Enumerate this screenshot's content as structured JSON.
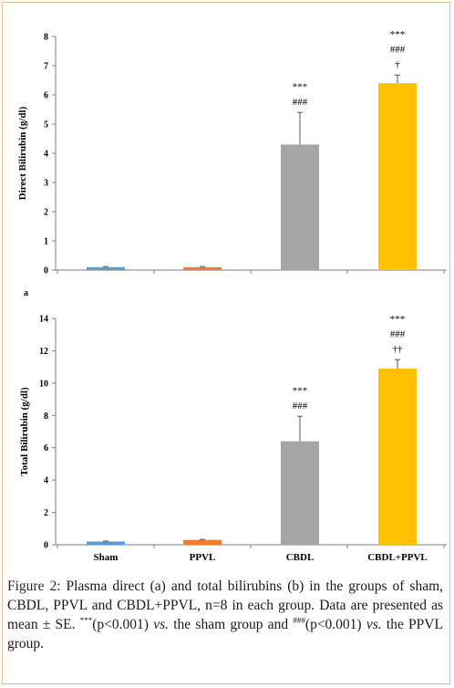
{
  "panel_labels": [
    "a"
  ],
  "caption": {
    "label": "Figure 2:",
    "part1": " Plasma direct (a) and total bilirubins (b) in the groups of sham, CBDL, PPVL and CBDL+PPVL, n=8 in each group. Data are presented as mean ± SE. ",
    "sup1": "***",
    "part2": "(p<0.001) ",
    "vs1": "vs.",
    "part3": " the sham group and ",
    "sup2": "###",
    "part4": "(p<0.001) ",
    "vs2": "vs.",
    "part5": " the PPVL group."
  },
  "chart_data": [
    {
      "type": "bar",
      "panel": "a",
      "ylabel": "Direct Bilirubin (g/dl)",
      "xlabel": "",
      "ylim": [
        0,
        8
      ],
      "yticks": [
        0,
        1,
        2,
        3,
        4,
        5,
        6,
        7,
        8
      ],
      "categories": [
        "",
        "",
        "",
        ""
      ],
      "values": [
        0.1,
        0.1,
        4.3,
        6.4
      ],
      "errors": [
        0.02,
        0.02,
        1.1,
        0.28
      ],
      "colors": [
        "#5b9bd5",
        "#ed7d31",
        "#a5a5a5",
        "#ffc000"
      ],
      "annotations": [
        [],
        [],
        [
          "***",
          "###"
        ],
        [
          "***",
          "###",
          "†"
        ]
      ]
    },
    {
      "type": "bar",
      "panel": "b",
      "ylabel": "Total Bilirubin (g/dl)",
      "xlabel": "",
      "ylim": [
        0,
        14
      ],
      "yticks": [
        0,
        2,
        4,
        6,
        8,
        10,
        12,
        14
      ],
      "categories": [
        "Sham",
        "PPVL",
        "CBDL",
        "CBDL+PPVL"
      ],
      "values": [
        0.2,
        0.3,
        6.4,
        10.9
      ],
      "errors": [
        0.03,
        0.03,
        1.55,
        0.55
      ],
      "colors": [
        "#5b9bd5",
        "#ed7d31",
        "#a5a5a5",
        "#ffc000"
      ],
      "annotations": [
        [],
        [],
        [
          "***",
          "###"
        ],
        [
          "***",
          "###",
          "††"
        ]
      ]
    }
  ]
}
